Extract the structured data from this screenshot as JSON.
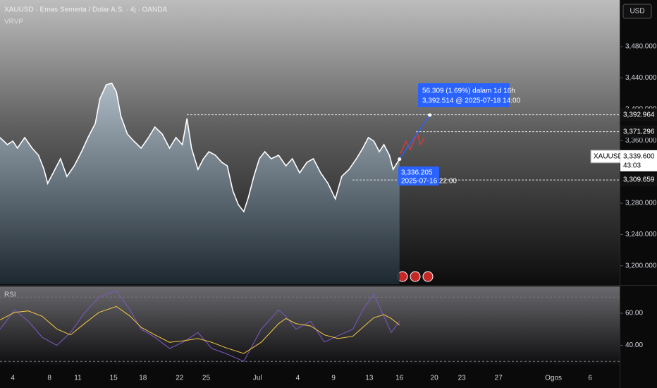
{
  "chart_data": [
    {
      "type": "line",
      "title": "XAUUSD · Emas Semerta / Dolar A.S. · 4j · OANDA",
      "indicator": "VRVP",
      "currency": "USD",
      "x": [
        -1.4,
        -0.6,
        0,
        0.5,
        1.3,
        2.1,
        2.8,
        3.4,
        3.8,
        4.4,
        5.2,
        5.9,
        6.7,
        7.5,
        8.2,
        9,
        9.5,
        10.2,
        10.8,
        11.3,
        11.8,
        12.5,
        13.2,
        14,
        14.8,
        15.5,
        16.3,
        17.1,
        17.8,
        18.5,
        19,
        19.5,
        20.2,
        20.8,
        21.4,
        22.1,
        22.8,
        23.4,
        24,
        24.6,
        25.2,
        25.7,
        26.3,
        26.9,
        27.5,
        28.2,
        29,
        29.8,
        30.5,
        31.3,
        32.1,
        32.8,
        33.6,
        34.4,
        35.2,
        35.9,
        36.7,
        37.5,
        38.2,
        38.8,
        39.4,
        40,
        40.5,
        41.1,
        41.5,
        42.2
      ],
      "series": [
        {
          "color": "#ffffff",
          "values": [
            3363.8,
            3354.8,
            3359.3,
            3350.3,
            3363.8,
            3350.3,
            3341.3,
            3323.2,
            3305.2,
            3318.7,
            3336.8,
            3314.2,
            3327.7,
            3345.8,
            3363.8,
            3381.8,
            3413.3,
            3431.4,
            3433.2,
            3422.3,
            3390.8,
            3368.3,
            3359.3,
            3350.3,
            3363.8,
            3377.3,
            3368.3,
            3350.3,
            3363.8,
            3354.8,
            3388.1,
            3350.3,
            3323.2,
            3336.8,
            3345.8,
            3341.3,
            3332.3,
            3327.7,
            3296.2,
            3278.2,
            3269.2,
            3287.2,
            3314.2,
            3336.8,
            3345.8,
            3336.8,
            3341.3,
            3327.7,
            3336.8,
            3318.7,
            3332.3,
            3336.8,
            3318.7,
            3305.2,
            3285.4,
            3314.2,
            3323.2,
            3336.8,
            3350.3,
            3363.8,
            3359.3,
            3345.8,
            3354.8,
            3341.3,
            3323.2,
            3336.205
          ]
        }
      ],
      "xlim": [
        -1.4,
        66.3
      ],
      "xticks": [
        {
          "value": 0,
          "label": "4"
        },
        {
          "value": 4,
          "label": "8"
        },
        {
          "value": 7.1,
          "label": "11"
        },
        {
          "value": 11,
          "label": "15"
        },
        {
          "value": 14.2,
          "label": "18"
        },
        {
          "value": 18.2,
          "label": "22"
        },
        {
          "value": 21.1,
          "label": "25"
        },
        {
          "value": 26.7,
          "label": "Jul"
        },
        {
          "value": 31.1,
          "label": "4"
        },
        {
          "value": 35,
          "label": "9"
        },
        {
          "value": 38.9,
          "label": "13"
        },
        {
          "value": 42.2,
          "label": "16"
        },
        {
          "value": 46,
          "label": "20"
        },
        {
          "value": 49,
          "label": "23"
        },
        {
          "value": 53,
          "label": "27"
        },
        {
          "value": 59,
          "label": "Ogos"
        },
        {
          "value": 63,
          "label": "6"
        }
      ],
      "ylim": [
        3176.4,
        3539.5
      ],
      "yticks": [
        {
          "value": 3200,
          "label": "3,200.000"
        },
        {
          "value": 3240,
          "label": "3,240.000"
        },
        {
          "value": 3280,
          "label": "3,280.000"
        },
        {
          "value": 3360,
          "label": "3,360.000"
        },
        {
          "value": 3400,
          "label": "3,400.000"
        },
        {
          "value": 3440,
          "label": "3,440.000"
        },
        {
          "value": 3480,
          "label": "3,480.000"
        }
      ],
      "price_lines": [
        {
          "value": 3392.964,
          "label": "3,392.964"
        },
        {
          "value": 3371.296,
          "label": "3,371.296"
        },
        {
          "value": 3309.659,
          "label": "3,309.659"
        }
      ],
      "current_price": {
        "value": 3339.6,
        "label": "3,339.600",
        "symbol": "XAUUSD",
        "countdown": "43:03"
      },
      "last_point": {
        "label": "3,336.205",
        "time": "2025-07-16 22:00"
      },
      "projection": {
        "x": [
          42.2,
          45.5
        ],
        "values": [
          3336.205,
          3392.514
        ],
        "label": "56.309 (1.69%) dalam 1d 16h",
        "detail": "3,392.514 @ 2025-07-18  14:00"
      }
    },
    {
      "type": "line",
      "title": "RSI",
      "x": [
        -1.4,
        0.2,
        1.7,
        3.2,
        4.8,
        6.3,
        7.8,
        9.4,
        11.3,
        12.8,
        14,
        15.5,
        17.1,
        18.6,
        20.2,
        21.7,
        23.2,
        25.2,
        27.1,
        29,
        29.8,
        30.9,
        32.5,
        34,
        35.5,
        37.1,
        38.2,
        39.4,
        40.5,
        41.3,
        42.2
      ],
      "series": [
        {
          "color": "#7e57c2",
          "values": [
            50,
            62,
            55,
            45,
            40,
            48,
            60,
            70,
            74,
            62,
            50,
            45,
            38,
            42,
            48,
            38,
            35,
            30,
            50,
            62,
            58,
            50,
            55,
            42,
            46,
            50,
            62,
            72,
            58,
            48,
            55
          ]
        },
        {
          "color": "#f7c843",
          "values": [
            55.8,
            60.5,
            61.4,
            58.1,
            50.2,
            46.5,
            53.5,
            60.5,
            64.2,
            58.1,
            51.2,
            46.5,
            41.9,
            42.8,
            44.2,
            41.9,
            38.6,
            34.9,
            41.9,
            53.5,
            56.7,
            53.5,
            52.1,
            46.5,
            44.2,
            45.6,
            51.2,
            57.2,
            59.1,
            56.7,
            52.6
          ]
        }
      ],
      "xlim": [
        -1.4,
        66.3
      ],
      "ylim": [
        27.9,
        76.7
      ],
      "yticks": [
        {
          "value": 40,
          "label": "40.00"
        },
        {
          "value": 60,
          "label": "60.00"
        }
      ],
      "bands": [
        70,
        30
      ]
    }
  ]
}
